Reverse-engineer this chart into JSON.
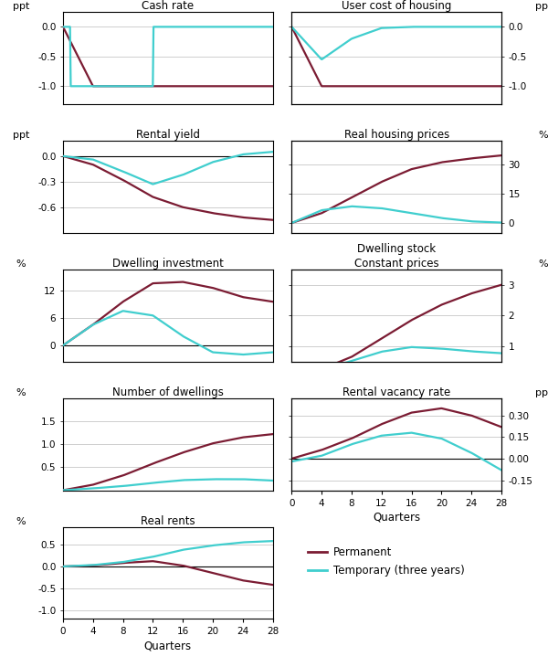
{
  "quarters_coarse": [
    0,
    4,
    8,
    12,
    16,
    20,
    24,
    28
  ],
  "colors": {
    "permanent": "#7B1C33",
    "temporary": "#40CECE"
  },
  "panels": [
    {
      "title": "Cash rate",
      "row": 0,
      "col": 0,
      "ylabel_left": "ppt",
      "ylabel_right": null,
      "ylim": [
        -1.3,
        0.25
      ],
      "yticks": [
        0.0,
        -0.5,
        -1.0
      ],
      "ytick_labels": [
        "0.0",
        "-0.5",
        "-1.0"
      ],
      "permanent": [
        0.0,
        -1.0,
        -1.0,
        -1.0,
        -1.0,
        -1.0,
        -1.0,
        -1.0
      ],
      "temporary": [
        0.0,
        -1.0,
        -1.0,
        -1.0,
        0.0,
        0.0,
        0.0,
        0.0
      ],
      "temp_step": true,
      "zero_line": false
    },
    {
      "title": "User cost of housing",
      "row": 0,
      "col": 1,
      "ylabel_left": null,
      "ylabel_right": "ppt",
      "ylim": [
        -1.3,
        0.25
      ],
      "yticks": [
        0.0,
        -0.5,
        -1.0
      ],
      "ytick_labels": [
        "0.0",
        "-0.5",
        "-1.0"
      ],
      "permanent": [
        0.0,
        -1.0,
        -1.0,
        -1.0,
        -1.0,
        -1.0,
        -1.0,
        -1.0
      ],
      "temporary": [
        0.0,
        -0.55,
        -0.2,
        -0.02,
        0.0,
        0.0,
        0.0,
        0.0
      ],
      "temp_step": false,
      "zero_line": false
    },
    {
      "title": "Rental yield",
      "row": 1,
      "col": 0,
      "ylabel_left": "ppt",
      "ylabel_right": null,
      "ylim": [
        -0.9,
        0.18
      ],
      "yticks": [
        0.0,
        -0.3,
        -0.6
      ],
      "ytick_labels": [
        "0.0",
        "-0.3",
        "-0.6"
      ],
      "permanent": [
        0.0,
        -0.1,
        -0.28,
        -0.48,
        -0.6,
        -0.67,
        -0.72,
        -0.75
      ],
      "temporary": [
        0.0,
        -0.04,
        -0.18,
        -0.33,
        -0.22,
        -0.07,
        0.02,
        0.05
      ],
      "temp_step": false,
      "zero_line": true
    },
    {
      "title": "Real housing prices",
      "row": 1,
      "col": 1,
      "ylabel_left": null,
      "ylabel_right": "%",
      "ylim": [
        -5,
        42
      ],
      "yticks": [
        30,
        15,
        0
      ],
      "ytick_labels": [
        "30",
        "15",
        "0"
      ],
      "permanent": [
        0.0,
        5.0,
        13.0,
        21.0,
        27.5,
        31.0,
        33.0,
        34.5
      ],
      "temporary": [
        0.0,
        6.5,
        8.5,
        7.5,
        5.0,
        2.5,
        0.8,
        0.2
      ],
      "temp_step": false,
      "zero_line": false
    },
    {
      "title": "Dwelling investment",
      "row": 2,
      "col": 0,
      "ylabel_left": "%",
      "ylabel_right": null,
      "ylim": [
        -3.5,
        16.5
      ],
      "yticks": [
        12,
        6,
        0
      ],
      "ytick_labels": [
        "12",
        "6",
        "0"
      ],
      "permanent": [
        0.0,
        4.5,
        9.5,
        13.5,
        13.8,
        12.5,
        10.5,
        9.5
      ],
      "temporary": [
        0.0,
        4.5,
        7.5,
        6.5,
        2.0,
        -1.5,
        -2.0,
        -1.5
      ],
      "temp_step": false,
      "zero_line": true
    },
    {
      "title": "Dwelling stock",
      "subtitle": "Constant prices",
      "row": 2,
      "col": 1,
      "ylabel_left": null,
      "ylabel_right": "%",
      "ylim": [
        0.5,
        3.5
      ],
      "yticks": [
        3,
        2,
        1
      ],
      "ytick_labels": [
        "3",
        "2",
        "1"
      ],
      "permanent": [
        0.05,
        0.25,
        0.65,
        1.25,
        1.85,
        2.35,
        2.72,
        3.0
      ],
      "temporary": [
        0.05,
        0.22,
        0.52,
        0.82,
        0.97,
        0.92,
        0.83,
        0.77
      ],
      "temp_step": false,
      "zero_line": false
    },
    {
      "title": "Number of dwellings",
      "row": 3,
      "col": 0,
      "ylabel_left": "%",
      "ylabel_right": null,
      "ylim": [
        0.0,
        2.0
      ],
      "yticks": [
        1.5,
        1.0,
        0.5
      ],
      "ytick_labels": [
        "1.5",
        "1.0",
        "0.5"
      ],
      "permanent": [
        0.0,
        0.12,
        0.32,
        0.58,
        0.82,
        1.02,
        1.15,
        1.22
      ],
      "temporary": [
        0.0,
        0.04,
        0.09,
        0.16,
        0.22,
        0.24,
        0.24,
        0.21
      ],
      "temp_step": false,
      "zero_line": false
    },
    {
      "title": "Rental vacancy rate",
      "row": 3,
      "col": 1,
      "ylabel_left": null,
      "ylabel_right": "ppt",
      "ylim": [
        -0.22,
        0.42
      ],
      "yticks": [
        0.3,
        0.15,
        0.0,
        -0.15
      ],
      "ytick_labels": [
        "0.30",
        "0.15",
        "0.00",
        "-0.15"
      ],
      "permanent": [
        0.0,
        0.06,
        0.14,
        0.24,
        0.32,
        0.35,
        0.3,
        0.22
      ],
      "temporary": [
        -0.02,
        0.02,
        0.1,
        0.16,
        0.18,
        0.14,
        0.04,
        -0.08
      ],
      "temp_step": false,
      "zero_line": true
    },
    {
      "title": "Real rents",
      "row": 4,
      "col": 0,
      "ylabel_left": "%",
      "ylabel_right": null,
      "ylim": [
        -1.2,
        0.9
      ],
      "yticks": [
        0.5,
        0.0,
        -0.5,
        -1.0
      ],
      "ytick_labels": [
        "0.5",
        "0.0",
        "-0.5",
        "-1.0"
      ],
      "permanent": [
        0.0,
        0.02,
        0.08,
        0.12,
        0.02,
        -0.15,
        -0.32,
        -0.42
      ],
      "temporary": [
        0.0,
        0.03,
        0.1,
        0.22,
        0.38,
        0.48,
        0.55,
        0.58
      ],
      "temp_step": false,
      "zero_line": true
    }
  ],
  "legend_entries": [
    "Permanent",
    "Temporary (three years)"
  ],
  "xlabel": "Quarters",
  "xticks": [
    0,
    4,
    8,
    12,
    16,
    20,
    24,
    28
  ]
}
